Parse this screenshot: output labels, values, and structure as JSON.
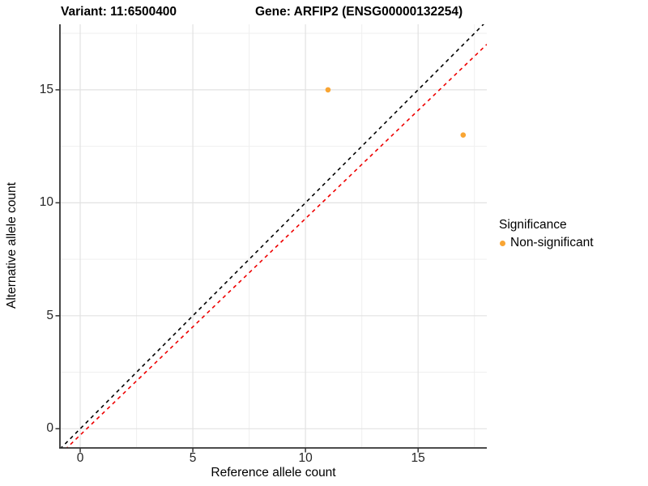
{
  "chart_data": {
    "type": "scatter",
    "titles": {
      "left": "Variant: 11:6500400",
      "right": "Gene: ARFIP2 (ENSG00000132254)"
    },
    "xlabel": "Reference allele count",
    "ylabel": "Alternative allele count",
    "xlim": [
      -0.9,
      18.05
    ],
    "ylim": [
      -0.85,
      17.9
    ],
    "xticks": [
      0,
      5,
      10,
      15
    ],
    "yticks": [
      0,
      5,
      10,
      15
    ],
    "xticks_minor": [
      2.5,
      7.5,
      12.5,
      17.5
    ],
    "yticks_minor": [
      2.5,
      7.5,
      12.5,
      17.5
    ],
    "grid": "major+minor",
    "points": [
      {
        "x": 11,
        "y": 15,
        "series": "Non-significant"
      },
      {
        "x": 17,
        "y": 13,
        "series": "Non-significant"
      }
    ],
    "point_color": "#F9A533",
    "point_radius_px": 3.3,
    "ablines": [
      {
        "name": "identity-line",
        "slope": 1,
        "intercept": 0,
        "color": "#000000",
        "style": "dashed"
      },
      {
        "name": "fitted-line",
        "slope": 0.958,
        "intercept": -0.28,
        "color": "#EE0000",
        "style": "dashed"
      }
    ],
    "legend": {
      "title": "Significance",
      "position": "right",
      "items": [
        {
          "label": "Non-significant",
          "color": "#F9A533"
        }
      ]
    },
    "colors": {
      "axis_line": "#333333",
      "major_grid": "#E2E2E2",
      "minor_grid": "#EFEFEF"
    }
  }
}
